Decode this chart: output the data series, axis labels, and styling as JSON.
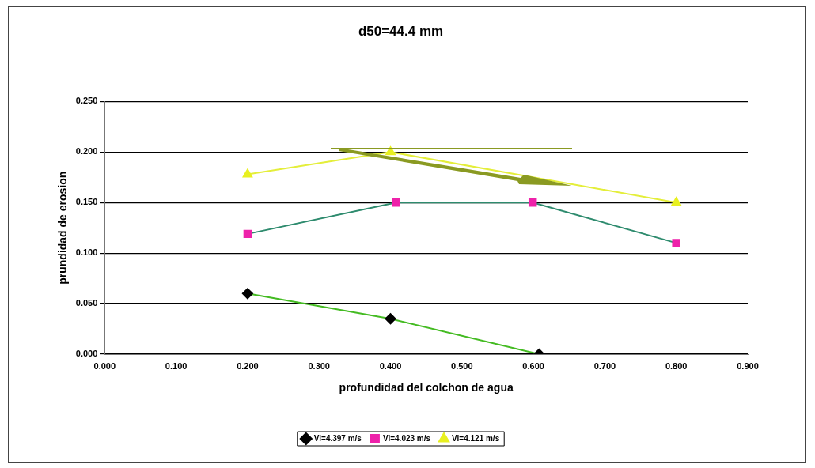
{
  "chart_data": {
    "type": "line",
    "title": "d50=44.4 mm",
    "xlabel": "profundidad del colchon de agua",
    "ylabel": "prundidad de erosion",
    "series": [
      {
        "name": "Vi=4.397 m/s",
        "color": "#44bb22",
        "colors": [
          "#000000",
          "#000000",
          "#000000"
        ],
        "marker": "diamond",
        "x": [
          0.2,
          0.4,
          0.608
        ],
        "values": [
          0.06,
          0.035,
          0.0
        ]
      },
      {
        "name": "Vi=4.023 m/s",
        "color": "#2e8b6e",
        "colors": [
          "#ee22aa",
          "#ee22aa",
          "#ee22aa",
          "#ee22aa"
        ],
        "marker": "square",
        "x": [
          0.2,
          0.408,
          0.599,
          0.8
        ],
        "values": [
          0.119,
          0.15,
          0.15,
          0.11
        ]
      },
      {
        "name": "Vi=4.121 m/s",
        "color": "#e4ee3a",
        "colors": [
          "#e8f020",
          "#e8f020",
          "#e8f020"
        ],
        "marker": "triangle",
        "x": [
          0.2,
          0.4,
          0.8
        ],
        "values": [
          0.178,
          0.2,
          0.15
        ]
      }
    ],
    "xlim": [
      0,
      0.9
    ],
    "xticks": [
      {
        "value": 0,
        "label": "0.000"
      },
      {
        "value": 0.1,
        "label": "0.100"
      },
      {
        "value": 0.2,
        "label": "0.200"
      },
      {
        "value": 0.3,
        "label": "0.300"
      },
      {
        "value": 0.4,
        "label": "0.400"
      },
      {
        "value": 0.5,
        "label": "0.500"
      },
      {
        "value": 0.6,
        "label": "0.600"
      },
      {
        "value": 0.7,
        "label": "0.700"
      },
      {
        "value": 0.8,
        "label": "0.800"
      },
      {
        "value": 0.9,
        "label": "0.900"
      }
    ],
    "ylim": [
      0,
      0.25
    ],
    "yticks": [
      {
        "value": 0,
        "label": "0.000"
      },
      {
        "value": 0.05,
        "label": "0.050"
      },
      {
        "value": 0.1,
        "label": "0.100"
      },
      {
        "value": 0.15,
        "label": "0.150"
      },
      {
        "value": 0.2,
        "label": "0.200"
      },
      {
        "value": 0.25,
        "label": "0.250"
      }
    ],
    "grid": "y",
    "legend": "bottom"
  }
}
